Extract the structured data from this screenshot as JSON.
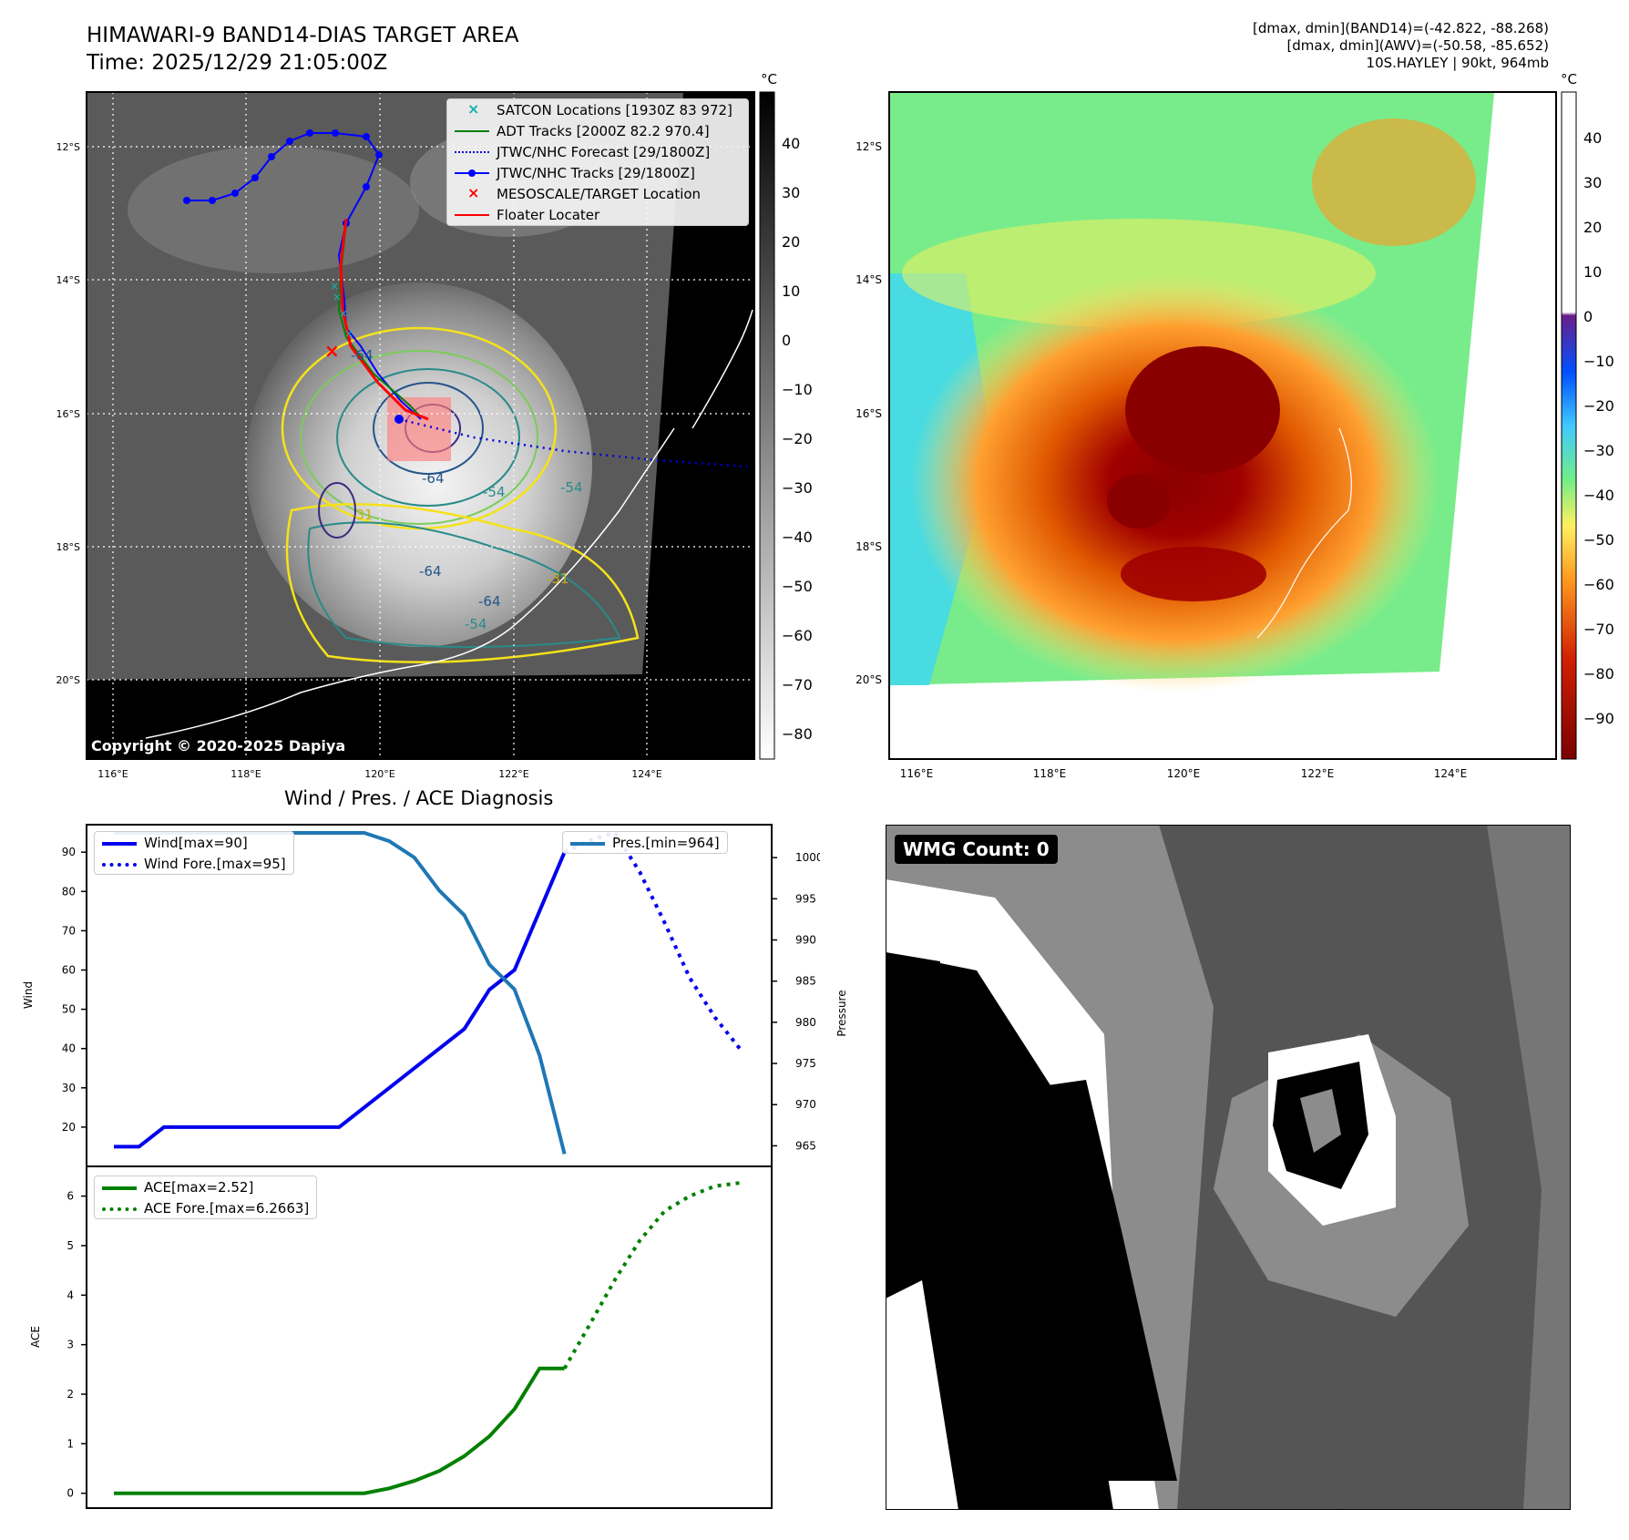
{
  "header": {
    "title_line1": "HIMAWARI-9 BAND14-DIAS TARGET AREA",
    "title_line2": "Time: 2025/12/29 21:05:00Z",
    "stats_line1": "[dmax, dmin](BAND14)=(-42.822, -88.268)",
    "stats_line2": "[dmax, dmin](AWV)=(-50.58, -85.652)",
    "stats_line3": "10S.HAYLEY | 90kt, 964mb"
  },
  "map_panel": {
    "copyright": "Copyright © 2020-2025 Dapiya",
    "colorbar_unit": "°C",
    "lat_ticks": [
      "12°S",
      "14°S",
      "16°S",
      "18°S",
      "20°S"
    ],
    "lon_ticks": [
      "116°E",
      "118°E",
      "120°E",
      "122°E",
      "124°E"
    ],
    "legend": [
      {
        "label": "SATCON Locations [1930Z 83 972]",
        "color": "#17b0b0",
        "marker": "x"
      },
      {
        "label": "ADT Tracks [2000Z 82.2 970.4]",
        "color": "#008000",
        "marker": "line"
      },
      {
        "label": "JTWC/NHC Forecast [29/1800Z]",
        "color": "#0000dd",
        "marker": "dotted"
      },
      {
        "label": "JTWC/NHC Tracks [29/1800Z]",
        "color": "#0000ff",
        "marker": "line-dot"
      },
      {
        "label": "MESOSCALE/TARGET Location",
        "color": "#ff0000",
        "marker": "x"
      },
      {
        "label": "Floater Locater",
        "color": "#ff0000",
        "marker": "line"
      }
    ],
    "contour_labels": [
      "-64",
      "-64",
      "-64",
      "-64",
      "-54",
      "-54",
      "-54",
      "-31",
      "-31"
    ],
    "gray_colorbar_ticks": [
      "40",
      "30",
      "20",
      "10",
      "0",
      "−10",
      "−20",
      "−30",
      "−40",
      "−50",
      "−60",
      "−70",
      "−80"
    ]
  },
  "color_panel": {
    "colorbar_unit": "°C",
    "colorbar_ticks": [
      "40",
      "30",
      "20",
      "10",
      "0",
      "−10",
      "−20",
      "−30",
      "−40",
      "−50",
      "−60",
      "−70",
      "−80",
      "−90"
    ]
  },
  "diagnosis_title": "Wind / Pres. / ACE Diagnosis",
  "wmg_panel": {
    "badge": "WMG Count: 0"
  },
  "chart_data": [
    {
      "type": "line",
      "title": "Wind / Pres. / ACE Diagnosis",
      "ylabel": "Wind",
      "y2label": "Pressure",
      "ylim": [
        10,
        97
      ],
      "y2lim": [
        962.5,
        1004
      ],
      "y_ticks": [
        20,
        30,
        40,
        50,
        60,
        70,
        80,
        90
      ],
      "y2_ticks": [
        965,
        970,
        975,
        980,
        985,
        990,
        995,
        1000
      ],
      "legend_left": "upper-left",
      "legend_right": "upper-right",
      "series": [
        {
          "name": "Wind[max=90]",
          "axis": "left",
          "color": "#0000ee",
          "style": "solid",
          "x": [
            0,
            1,
            2,
            3,
            4,
            5,
            6,
            7,
            8,
            9,
            10,
            11,
            12,
            13,
            14,
            15,
            16,
            17,
            18
          ],
          "values": [
            15,
            15,
            20,
            20,
            20,
            20,
            20,
            20,
            20,
            20,
            25,
            30,
            35,
            40,
            45,
            55,
            60,
            75,
            90
          ]
        },
        {
          "name": "Wind Fore.[max=95]",
          "axis": "left",
          "color": "#0000ee",
          "style": "dotted",
          "x": [
            18,
            19,
            20,
            21,
            22,
            23,
            24,
            25
          ],
          "values": [
            90,
            93,
            95,
            85,
            72,
            58,
            48,
            40
          ]
        },
        {
          "name": "Pres.[min=964]",
          "axis": "right",
          "color": "#1f77b4",
          "style": "solid",
          "x": [
            0,
            1,
            2,
            3,
            4,
            5,
            6,
            7,
            8,
            9,
            10,
            11,
            12,
            13,
            14,
            15,
            16,
            17,
            18
          ],
          "values": [
            1003,
            1003,
            1003,
            1003,
            1003,
            1003,
            1003,
            1003,
            1003,
            1003,
            1003,
            1002,
            1000,
            996,
            993,
            987,
            984,
            976,
            964
          ]
        }
      ]
    },
    {
      "type": "line",
      "ylabel": "ACE",
      "ylim": [
        -0.3,
        6.6
      ],
      "y_ticks": [
        0,
        1,
        2,
        3,
        4,
        5,
        6
      ],
      "legend": "upper-left",
      "series": [
        {
          "name": "ACE[max=2.52]",
          "color": "#008000",
          "style": "solid",
          "x": [
            0,
            1,
            2,
            3,
            4,
            5,
            6,
            7,
            8,
            9,
            10,
            11,
            12,
            13,
            14,
            15,
            16,
            17,
            18
          ],
          "values": [
            0,
            0,
            0,
            0,
            0,
            0,
            0,
            0,
            0,
            0,
            0,
            0.1,
            0.25,
            0.45,
            0.75,
            1.15,
            1.7,
            2.52,
            2.52
          ]
        },
        {
          "name": "ACE Fore.[max=6.2663]",
          "color": "#008000",
          "style": "dotted",
          "x": [
            18,
            19,
            20,
            21,
            22,
            23,
            24,
            25
          ],
          "values": [
            2.52,
            3.4,
            4.3,
            5.1,
            5.7,
            6.0,
            6.2,
            6.2663
          ]
        }
      ]
    }
  ]
}
